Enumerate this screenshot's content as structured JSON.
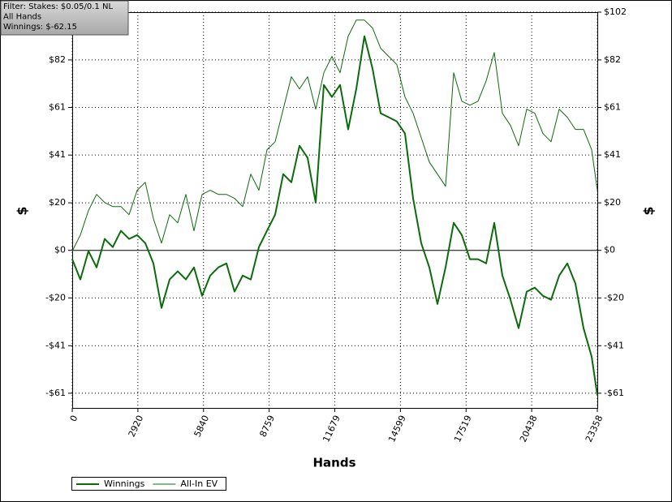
{
  "chart_data": {
    "type": "line",
    "filter_lines": [
      "Filter: Stakes: $0.05/0.1 NL",
      "All Hands",
      "Winnings: $-62.15"
    ],
    "xlabel": "Hands",
    "ylabel": "$",
    "x": [
      0,
      361,
      722,
      1083,
      1444,
      1805,
      2166,
      2527,
      2888,
      3249,
      3610,
      3971,
      4332,
      4693,
      5054,
      5415,
      5776,
      6137,
      6498,
      6859,
      7220,
      7581,
      7942,
      8303,
      8664,
      9025,
      9386,
      9747,
      10108,
      10469,
      10830,
      11191,
      11552,
      11913,
      12274,
      12635,
      12996,
      13357,
      13718,
      14079,
      14440,
      14801,
      15162,
      15523,
      15884,
      16245,
      16606,
      16967,
      17328,
      17689,
      18050,
      18411,
      18772,
      19133,
      19494,
      19855,
      20216,
      20577,
      20938,
      21299,
      21660,
      22021,
      22382,
      22743,
      23104,
      23358
    ],
    "series": [
      {
        "name": "Winnings",
        "color": "#0b6b0b",
        "width": 2,
        "values": [
          -3.8,
          -12.5,
          -0.3,
          -7.3,
          4.9,
          1.4,
          8.4,
          4.9,
          6.6,
          3.1,
          -5.6,
          -24.7,
          -12.5,
          -9.0,
          -12.5,
          -7.3,
          -19.5,
          -10.8,
          -7.3,
          -5.6,
          -17.7,
          -10.8,
          -12.5,
          1.4,
          8.4,
          15.3,
          32.7,
          29.2,
          44.9,
          39.7,
          20.5,
          71.0,
          65.8,
          71.0,
          51.9,
          69.3,
          91.9,
          78.0,
          58.8,
          57.1,
          55.3,
          50.1,
          22.3,
          3.1,
          -7.3,
          -23.0,
          -7.3,
          11.8,
          6.6,
          -3.8,
          -3.8,
          -5.6,
          11.8,
          -10.8,
          -21.2,
          -33.4,
          -17.7,
          -16.0,
          -19.5,
          -21.2,
          -10.8,
          -5.6,
          -14.3,
          -33.4,
          -45.6,
          -62.2
        ]
      },
      {
        "name": "All-In EV",
        "color": "#0b6b0b",
        "width": 1,
        "values": [
          -0.3,
          6.6,
          17.1,
          24.0,
          20.5,
          18.8,
          18.8,
          15.3,
          25.8,
          29.2,
          13.6,
          3.1,
          15.3,
          11.8,
          24.0,
          8.4,
          24.0,
          25.8,
          24.0,
          24.0,
          22.3,
          18.8,
          32.7,
          25.8,
          43.2,
          46.6,
          60.6,
          74.5,
          69.3,
          74.5,
          60.6,
          76.2,
          83.2,
          76.2,
          91.9,
          98.8,
          98.8,
          95.4,
          86.7,
          83.2,
          79.7,
          65.8,
          58.8,
          48.4,
          37.9,
          32.7,
          27.5,
          76.2,
          64.0,
          62.3,
          64.0,
          72.7,
          84.9,
          58.8,
          53.6,
          44.9,
          60.6,
          58.8,
          50.1,
          46.6,
          60.6,
          57.1,
          51.9,
          51.9,
          43.2,
          25.8
        ]
      }
    ],
    "xlim": [
      0,
      23358
    ],
    "xticks": [
      0,
      2920,
      5840,
      8759,
      11679,
      14599,
      17519,
      20438,
      23358
    ],
    "ylim": [
      -67.6,
      102.2
    ],
    "yticks": [
      {
        "value": 102.2,
        "label": "$102"
      },
      {
        "value": 81.7,
        "label": "$82"
      },
      {
        "value": 61.3,
        "label": "$61"
      },
      {
        "value": 40.9,
        "label": "$41"
      },
      {
        "value": 20.4,
        "label": "$20"
      },
      {
        "value": 0,
        "label": "$0"
      },
      {
        "value": -20.4,
        "label": "-$20"
      },
      {
        "value": -40.9,
        "label": "-$41"
      },
      {
        "value": -61.3,
        "label": "-$61"
      }
    ],
    "grid": true
  }
}
